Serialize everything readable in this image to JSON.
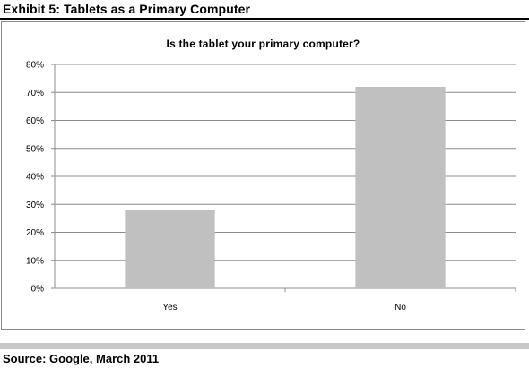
{
  "exhibit_title": "Exhibit 5: Tablets as a Primary Computer",
  "source": "Source: Google, March 2011",
  "colors": {
    "bar": "#c0c0c0",
    "grid": "#8c8c8c",
    "axis": "#8c8c8c"
  },
  "chart_data": {
    "type": "bar",
    "title": "Is the tablet your primary computer?",
    "categories": [
      "Yes",
      "No"
    ],
    "values": [
      28,
      72
    ],
    "yticks": [
      "0%",
      "10%",
      "20%",
      "30%",
      "40%",
      "50%",
      "60%",
      "70%",
      "80%"
    ],
    "ylim": [
      0,
      80
    ],
    "grid": true,
    "legend": "none",
    "xlabel": "",
    "ylabel": ""
  }
}
